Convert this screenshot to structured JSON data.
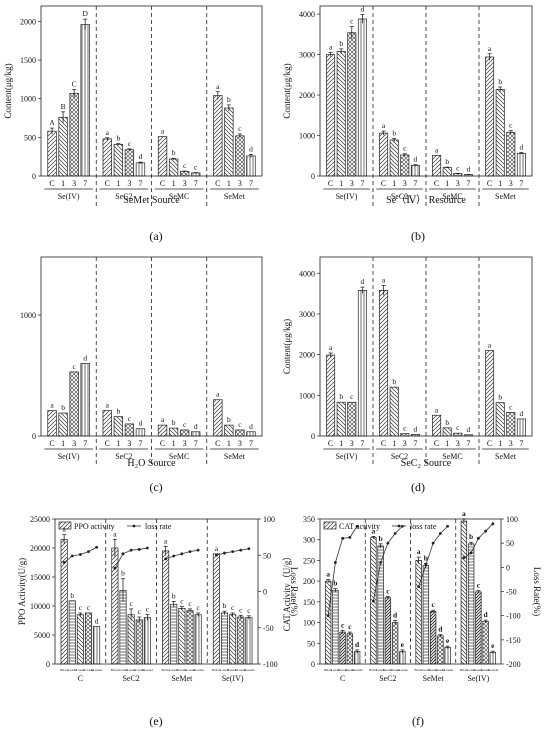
{
  "chart_data": [
    {
      "id": "a",
      "type": "bar",
      "panel_label": "(a)",
      "xlabel": "SeMet Source",
      "ylabel": "Content(μg/kg)",
      "ylim": [
        0,
        2200
      ],
      "yticks": [
        0,
        500,
        1000,
        1500,
        2000
      ],
      "sub_categories": [
        "C",
        "1",
        "3",
        "7"
      ],
      "groups": [
        {
          "name": "Se(IV)",
          "values": [
            580,
            760,
            1070,
            1960
          ],
          "errors": [
            40,
            70,
            50,
            70
          ],
          "letters": [
            "A",
            "B",
            "C",
            "D"
          ]
        },
        {
          "name": "SeC2",
          "values": [
            480,
            410,
            340,
            170
          ],
          "errors": [
            15,
            10,
            12,
            10
          ],
          "letters": [
            "a",
            "b",
            "c",
            "d"
          ]
        },
        {
          "name": "SeMC",
          "values": [
            510,
            220,
            60,
            40
          ],
          "errors": [
            0,
            10,
            5,
            5
          ],
          "letters": [
            "a",
            "b",
            "c",
            "c"
          ]
        },
        {
          "name": "SeMet",
          "values": [
            1040,
            880,
            520,
            260
          ],
          "errors": [
            50,
            40,
            25,
            20
          ],
          "letters": [
            "a",
            "b",
            "c",
            "d"
          ]
        }
      ]
    },
    {
      "id": "b",
      "type": "bar",
      "panel_label": "(b)",
      "xlabel": "Se（Ⅳ） Resource",
      "ylabel": "Content(μg/kg)",
      "ylim": [
        0,
        4200
      ],
      "yticks": [
        0,
        1000,
        2000,
        3000,
        4000
      ],
      "sub_categories": [
        "C",
        "1",
        "3",
        "7"
      ],
      "groups": [
        {
          "name": "Se(IV)",
          "values": [
            3000,
            3080,
            3540,
            3880
          ],
          "errors": [
            50,
            60,
            150,
            110
          ],
          "letters": [
            "a",
            "b",
            "c",
            "d"
          ]
        },
        {
          "name": "SeC2",
          "values": [
            1060,
            890,
            520,
            260
          ],
          "errors": [
            50,
            40,
            30,
            20
          ],
          "letters": [
            "a",
            "b",
            "c",
            "d"
          ]
        },
        {
          "name": "SeMC",
          "values": [
            510,
            210,
            60,
            35
          ],
          "errors": [
            0,
            10,
            5,
            5
          ],
          "letters": [
            "a",
            "b",
            "c",
            "d"
          ]
        },
        {
          "name": "SeMet",
          "values": [
            2940,
            2140,
            1080,
            560
          ],
          "errors": [
            80,
            60,
            40,
            20
          ],
          "letters": [
            "a",
            "b",
            "c",
            "d"
          ]
        }
      ]
    },
    {
      "id": "c",
      "type": "bar",
      "panel_label": "(c)",
      "xlabel": "H₂O Source",
      "ylabel": "",
      "ylim": [
        0,
        1480
      ],
      "yticks": [
        0,
        1000,
        2000
      ],
      "sub_categories": [
        "C",
        "1",
        "3",
        "7"
      ],
      "groups": [
        {
          "name": "Se(IV)",
          "values": [
            210,
            190,
            530,
            600
          ],
          "errors": [
            0,
            0,
            0,
            0
          ],
          "letters": [
            "a",
            "b",
            "c",
            "d"
          ]
        },
        {
          "name": "SeC2",
          "values": [
            210,
            160,
            100,
            60
          ],
          "errors": [
            0,
            0,
            0,
            0
          ],
          "letters": [
            "a",
            "b",
            "c",
            "d"
          ]
        },
        {
          "name": "SeMC",
          "values": [
            90,
            65,
            50,
            35
          ],
          "errors": [
            0,
            0,
            0,
            0
          ],
          "letters": [
            "a",
            "b",
            "c",
            "d"
          ]
        },
        {
          "name": "SeMet",
          "values": [
            300,
            90,
            50,
            35
          ],
          "errors": [
            0,
            0,
            0,
            0
          ],
          "letters": [
            "a",
            "b",
            "c",
            "d"
          ]
        }
      ]
    },
    {
      "id": "d",
      "type": "bar",
      "panel_label": "(d)",
      "xlabel": "SeC₂ Source",
      "ylabel": "Content(μg/kg)",
      "ylim": [
        0,
        4400
      ],
      "yticks": [
        0,
        1000,
        2000,
        3000,
        4000
      ],
      "sub_categories": [
        "C",
        "1",
        "3",
        "7"
      ],
      "groups": [
        {
          "name": "Se(IV)",
          "values": [
            1990,
            830,
            830,
            3580
          ],
          "errors": [
            50,
            0,
            0,
            80
          ],
          "letters": [
            "a",
            "b",
            "c",
            "d"
          ]
        },
        {
          "name": "SeC2",
          "values": [
            3580,
            1200,
            60,
            40
          ],
          "errors": [
            120,
            0,
            0,
            0
          ],
          "letters": [
            "a",
            "b",
            "c",
            "d"
          ]
        },
        {
          "name": "SeMC",
          "values": [
            510,
            200,
            70,
            30
          ],
          "errors": [
            0,
            0,
            0,
            0
          ],
          "letters": [
            "a",
            "b",
            "c",
            "d"
          ]
        },
        {
          "name": "SeMet",
          "values": [
            2100,
            820,
            580,
            420
          ],
          "errors": [
            0,
            0,
            0,
            0
          ],
          "letters": [
            "a",
            "b",
            "c",
            "d"
          ]
        }
      ]
    },
    {
      "id": "e",
      "type": "bar+line",
      "panel_label": "(e)",
      "ylabel_left": "PPO Activity(U/g)",
      "ylabel_right": "Loss Rate(%)",
      "ylim": [
        0,
        25000
      ],
      "yticks": [
        0,
        5000,
        10000,
        15000,
        20000,
        25000
      ],
      "ylim_right": [
        -100,
        100
      ],
      "yticks_right": [
        -100,
        -50,
        0,
        50,
        100
      ],
      "legend": [
        "PPO activity",
        "loss rate"
      ],
      "sub_categories": [
        "Before",
        "4 weeks",
        "8 weeks",
        "12 weeks",
        "16 weeks"
      ],
      "groups": [
        {
          "name": "C",
          "values": [
            21500,
            10900,
            8500,
            8800,
            6500
          ],
          "errors": [
            800,
            0,
            300,
            0,
            0
          ],
          "loss_rate": [
            40,
            49,
            51,
            55,
            61
          ],
          "letters": [
            "a",
            "b",
            "c",
            "c",
            "d"
          ]
        },
        {
          "name": "SeC2",
          "values": [
            20000,
            12700,
            8500,
            7600,
            8000
          ],
          "errors": [
            1500,
            2000,
            1000,
            500,
            500
          ],
          "loss_rate": [
            32,
            52,
            57,
            58,
            60
          ],
          "letters": [
            "a",
            "b",
            "c",
            "c",
            "c"
          ]
        },
        {
          "name": "SeMet",
          "values": [
            19500,
            10300,
            9600,
            9200,
            8500
          ],
          "errors": [
            800,
            500,
            300,
            300,
            300
          ],
          "loss_rate": [
            45,
            49,
            52,
            55,
            57
          ],
          "letters": [
            "a",
            "b",
            "c",
            "c",
            "c"
          ]
        },
        {
          "name": "Se(IV)",
          "values": [
            19000,
            8800,
            8500,
            8100,
            8000
          ],
          "errors": [
            0,
            300,
            300,
            300,
            300
          ],
          "loss_rate": [
            50,
            53,
            55,
            57,
            59
          ],
          "letters": [
            "a",
            "b",
            "c",
            "c",
            "c"
          ]
        }
      ]
    },
    {
      "id": "f",
      "type": "bar+line",
      "panel_label": "(f)",
      "ylabel_left": "CAT Activity（U/g）",
      "ylabel_right": "Loss Rate(%)",
      "ylim": [
        0,
        350
      ],
      "yticks": [
        0,
        50,
        100,
        150,
        200,
        250,
        300,
        350
      ],
      "ylim_right": [
        -200,
        100
      ],
      "yticks_right": [
        -200,
        -150,
        -100,
        -50,
        0,
        50,
        100
      ],
      "legend": [
        "CAT activity",
        "loss rate"
      ],
      "sub_categories": [
        "Before",
        "3 weeks",
        "6 weeks",
        "9 weeks",
        "12 weeks"
      ],
      "groups": [
        {
          "name": "C",
          "values": [
            200,
            178,
            77,
            73,
            30
          ],
          "errors": [
            4,
            4,
            4,
            4,
            4
          ],
          "loss_rate": [
            -100,
            10,
            60,
            62,
            85
          ],
          "letters": [
            "a",
            "b",
            "c",
            "c",
            "d"
          ]
        },
        {
          "name": "SeC2",
          "values": [
            305,
            285,
            160,
            100,
            30
          ],
          "errors": [
            3,
            5,
            3,
            5,
            4
          ],
          "loss_rate": [
            -70,
            10,
            50,
            70,
            85
          ],
          "letters": [
            "a",
            "b",
            "c",
            "d",
            "e"
          ]
        },
        {
          "name": "SeMet",
          "values": [
            250,
            238,
            127,
            68,
            40
          ],
          "errors": [
            8,
            5,
            3,
            3,
            3
          ],
          "loss_rate": [
            -40,
            5,
            50,
            70,
            85
          ],
          "letters": [
            "a",
            "b",
            "c",
            "d",
            "e"
          ]
        },
        {
          "name": "Se(IV)",
          "values": [
            345,
            290,
            174,
            103,
            28
          ],
          "errors": [
            5,
            4,
            3,
            3,
            3
          ],
          "loss_rate": [
            20,
            30,
            60,
            75,
            90
          ],
          "letters": [
            "a",
            "b",
            "c",
            "d",
            "e"
          ]
        }
      ]
    }
  ]
}
